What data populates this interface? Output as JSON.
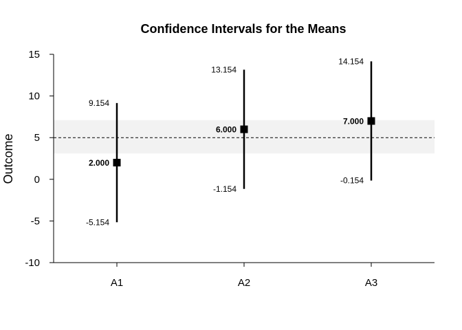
{
  "chart_data": {
    "type": "scatter",
    "title": "Confidence Intervals for the Means",
    "xlabel": "",
    "ylabel": "Outcome",
    "categories": [
      "A1",
      "A2",
      "A3"
    ],
    "ylim": [
      -10,
      15
    ],
    "yticks": [
      -10,
      -5,
      0,
      5,
      10,
      15
    ],
    "grid": false,
    "reference_line": {
      "value": 5,
      "style": "dashed",
      "band": [
        3.1,
        7.1
      ],
      "band_color": "#f2f2f2"
    },
    "series": [
      {
        "points": [
          {
            "category": "A1",
            "mean": 2.0,
            "lower": -5.154,
            "upper": 9.154,
            "mean_label": "2.000",
            "lower_label": "-5.154",
            "upper_label": "9.154"
          },
          {
            "category": "A2",
            "mean": 6.0,
            "lower": -1.154,
            "upper": 13.154,
            "mean_label": "6.000",
            "lower_label": "-1.154",
            "upper_label": "13.154"
          },
          {
            "category": "A3",
            "mean": 7.0,
            "lower": -0.154,
            "upper": 14.154,
            "mean_label": "7.000",
            "lower_label": "-0.154",
            "upper_label": "14.154"
          }
        ]
      }
    ],
    "colors": {
      "marker": "#000000",
      "line": "#000000",
      "band": "#f2f2f2"
    }
  }
}
